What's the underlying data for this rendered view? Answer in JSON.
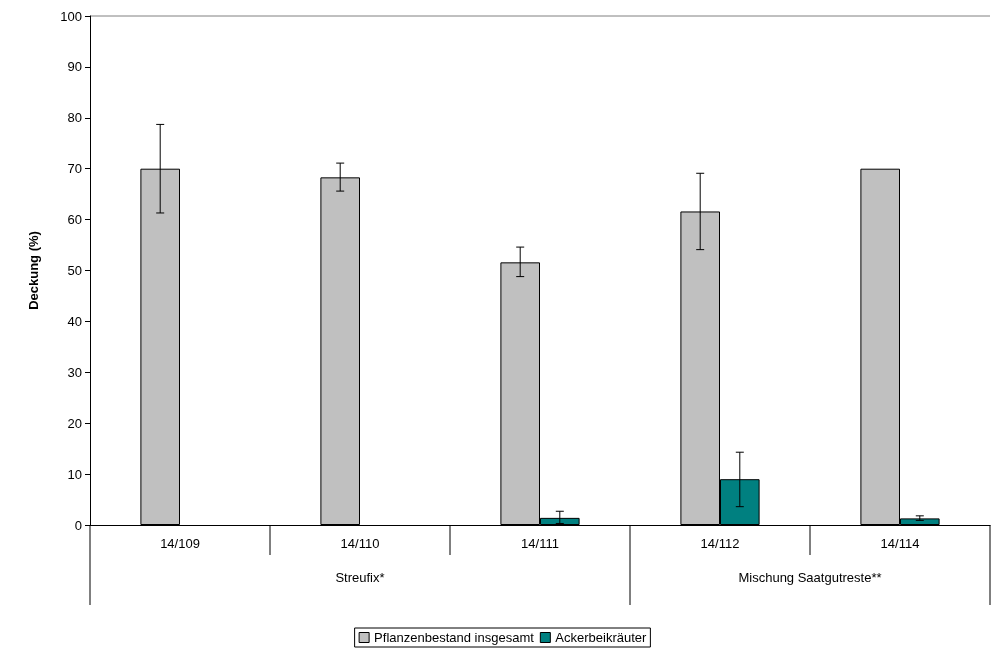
{
  "chart_data": {
    "type": "bar",
    "ylabel": "Deckung (%)",
    "categories": [
      "14/109",
      "14/110",
      "14/111",
      "14/112",
      "14/114"
    ],
    "series": [
      {
        "name": "Pflanzenbestand insgesamt",
        "color": "#c0c0c0",
        "values": [
          70,
          68.3,
          51.6,
          61.6,
          70
        ],
        "errors": [
          [
            61.3,
            78.7
          ],
          [
            65.6,
            71.1
          ],
          [
            48.8,
            54.6
          ],
          [
            54.1,
            69.1
          ],
          null
        ]
      },
      {
        "name": "Ackerbeikräuter",
        "color": "#008080",
        "values": [
          0,
          0,
          1.4,
          9,
          1.3
        ],
        "errors": [
          null,
          null,
          [
            0.3,
            2.7
          ],
          [
            3.6,
            14.3
          ],
          [
            0.9,
            1.8
          ]
        ]
      }
    ],
    "annotations": [
      "Streufix*",
      "Mischung Saatgutreste**"
    ],
    "ylim": [
      0,
      100
    ],
    "yticks": [
      0,
      10,
      20,
      30,
      40,
      50,
      60,
      70,
      80,
      90,
      100
    ],
    "grid": false,
    "legend": "bottom"
  }
}
